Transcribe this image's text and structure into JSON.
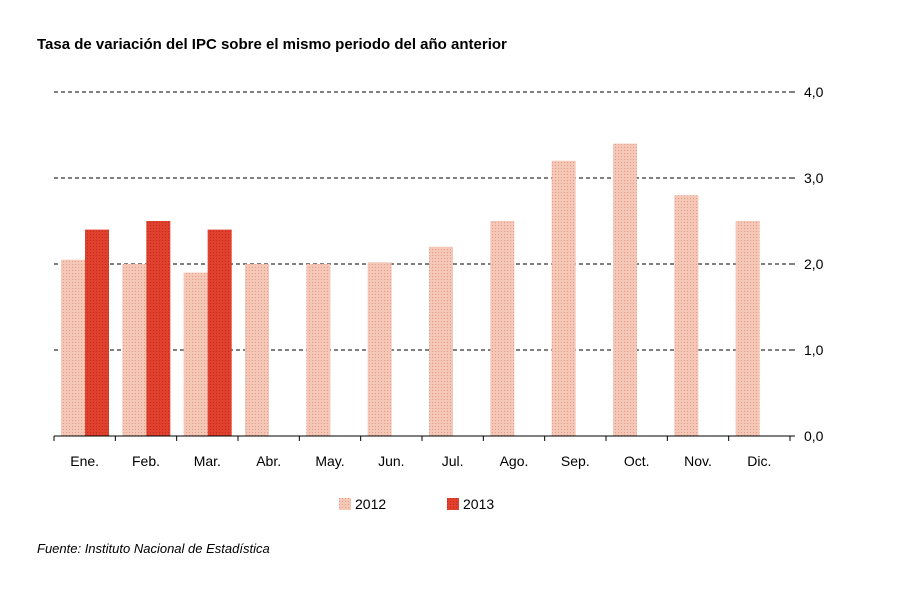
{
  "title": "Tasa de variación del IPC sobre el mismo periodo del año anterior",
  "source": "Fuente: Instituto Nacional de Estadística",
  "chart_data": {
    "type": "bar",
    "categories": [
      "Ene.",
      "Feb.",
      "Mar.",
      "Abr.",
      "May.",
      "Jun.",
      "Jul.",
      "Ago.",
      "Sep.",
      "Oct.",
      "Nov.",
      "Dic."
    ],
    "series": [
      {
        "name": "2012",
        "color": "#f2b9a6",
        "values": [
          2.05,
          2.0,
          1.9,
          2.0,
          2.0,
          2.02,
          2.2,
          2.5,
          3.2,
          3.4,
          2.8,
          2.5
        ]
      },
      {
        "name": "2013",
        "color": "#dd3b2a",
        "values": [
          2.4,
          2.5,
          2.4,
          null,
          null,
          null,
          null,
          null,
          null,
          null,
          null,
          null
        ]
      }
    ],
    "yticks": [
      "0,0",
      "1,0",
      "2,0",
      "3,0",
      "4,0"
    ],
    "ylim": [
      0,
      4
    ],
    "ytick_values": [
      0,
      1,
      2,
      3,
      4
    ],
    "y_axis_side": "right",
    "grid": "dashed horizontal",
    "legend": "bottom-center"
  }
}
